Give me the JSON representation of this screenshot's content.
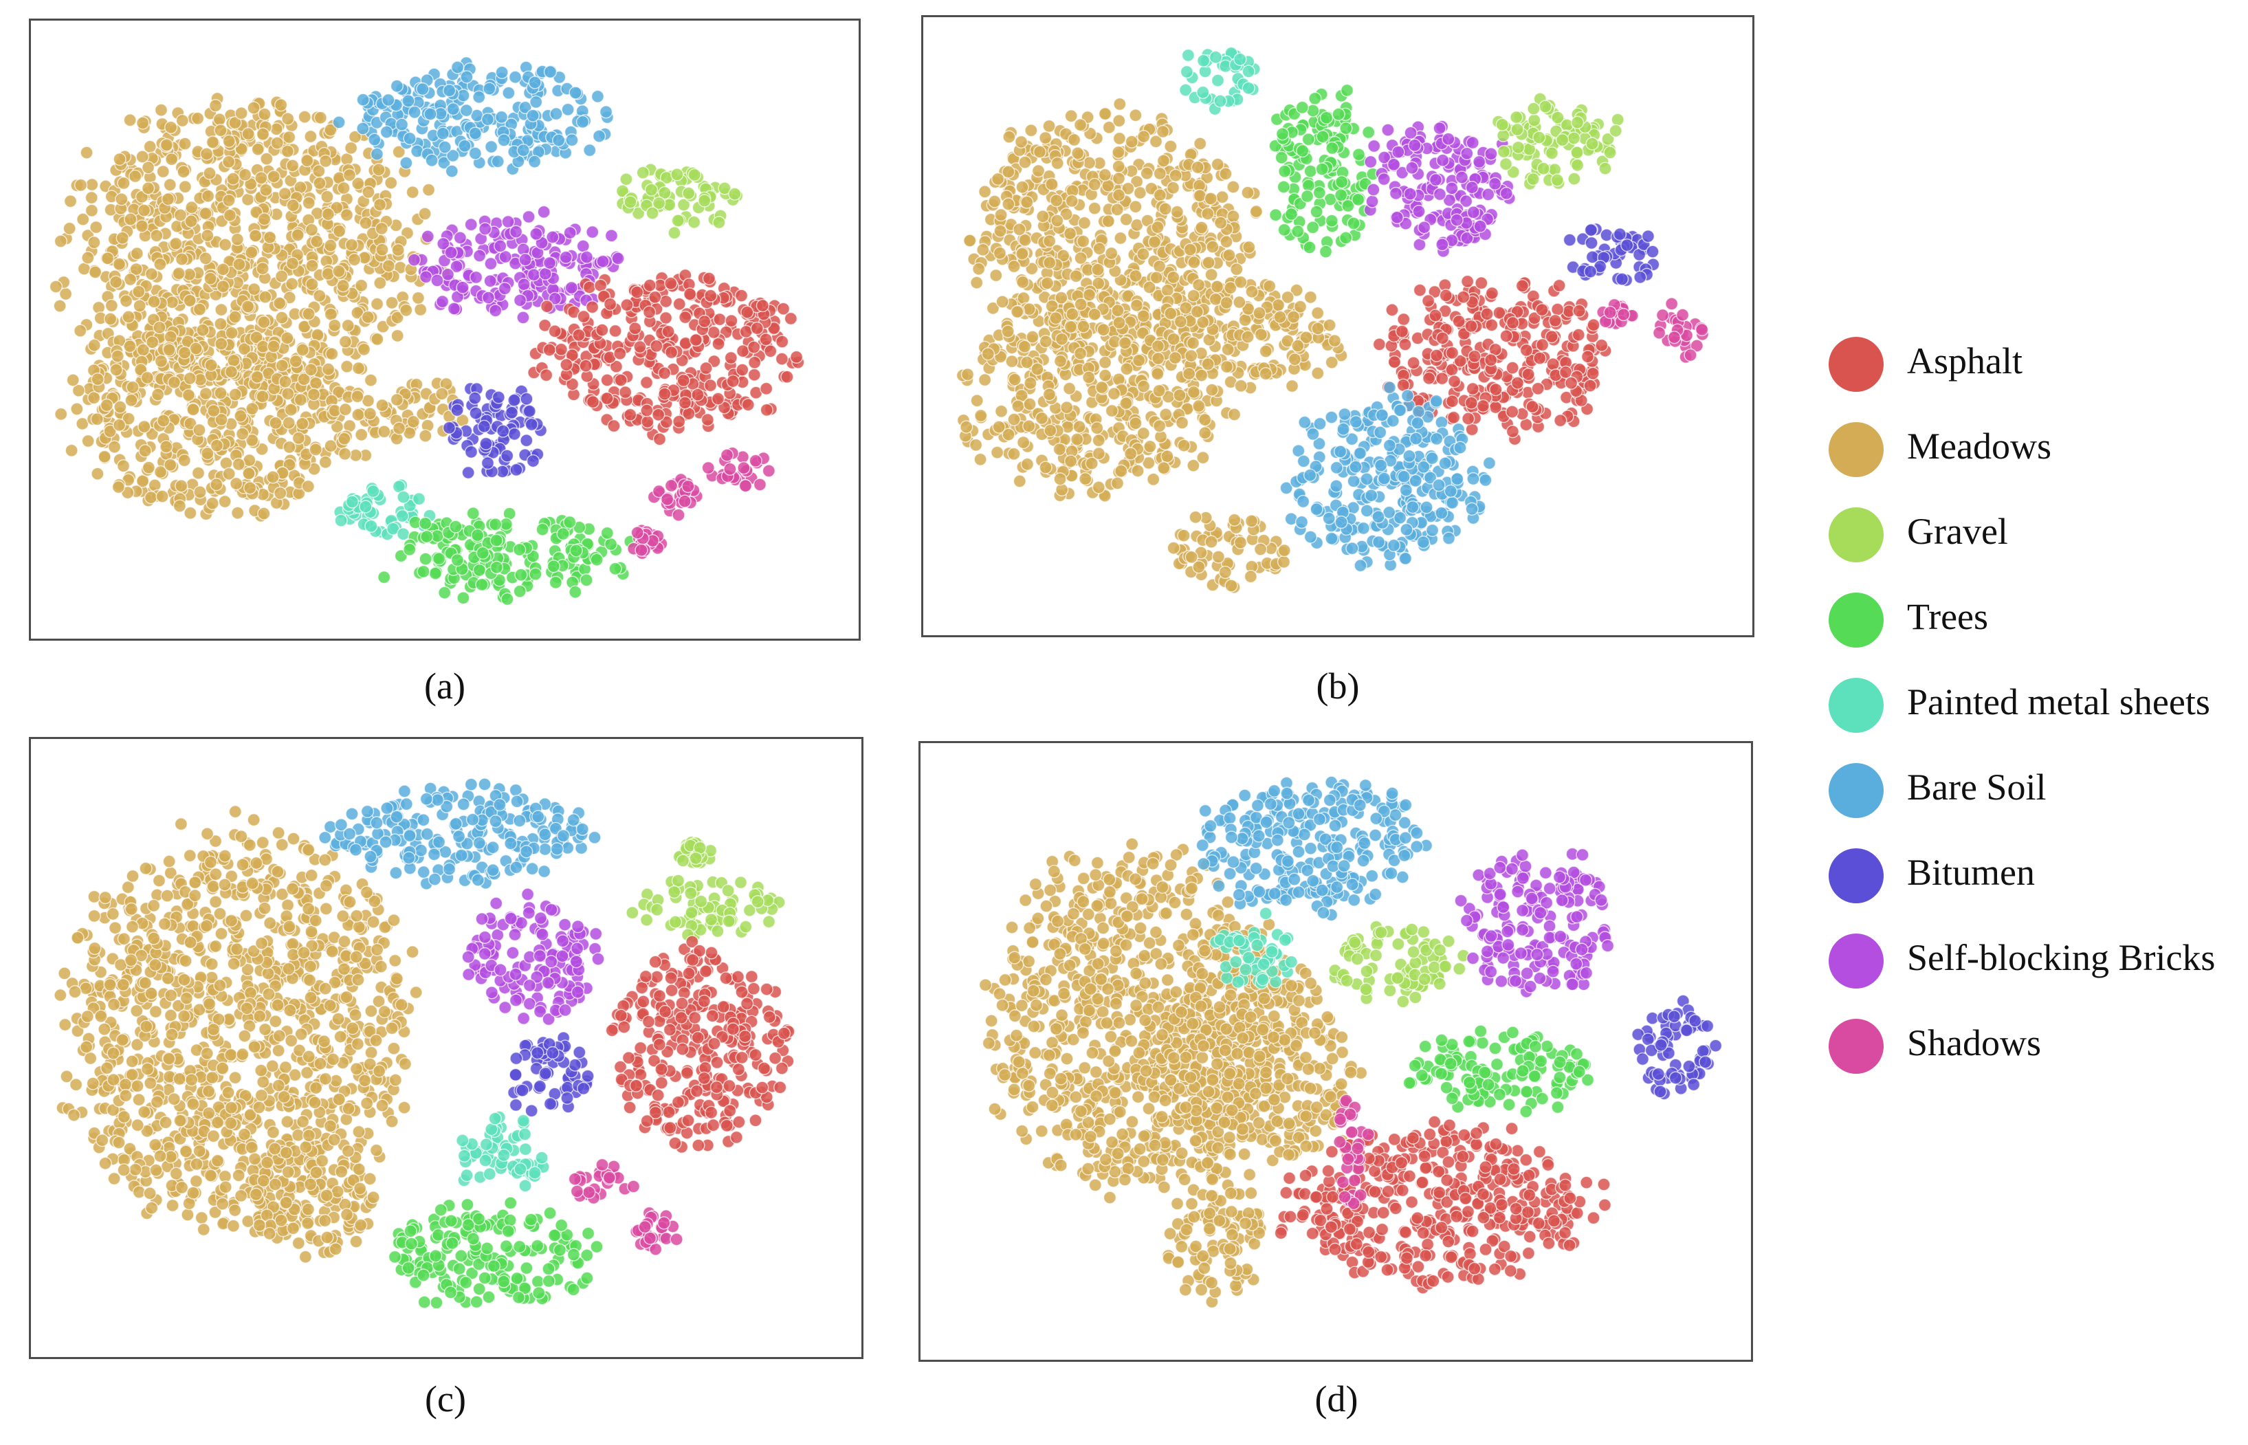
{
  "legend": {
    "items": [
      {
        "label": "Asphalt",
        "color": "#d9534f"
      },
      {
        "label": "Meadows",
        "color": "#d4ac55"
      },
      {
        "label": "Gravel",
        "color": "#a6dc5a"
      },
      {
        "label": "Trees",
        "color": "#55db55"
      },
      {
        "label": "Painted metal sheets",
        "color": "#5de0bc"
      },
      {
        "label": "Bare Soil",
        "color": "#5aaede"
      },
      {
        "label": "Bitumen",
        "color": "#5a4fd6"
      },
      {
        "label": "Self-blocking Bricks",
        "color": "#b34ee0"
      },
      {
        "label": "Shadows",
        "color": "#d94aa1"
      }
    ]
  },
  "chart_data": [
    {
      "type": "scatter",
      "caption": "(a)",
      "xlim": [
        0,
        100
      ],
      "ylim": [
        0,
        100
      ],
      "clusters": [
        {
          "class": "Meadows",
          "cx": 25,
          "cy": 62,
          "rx": 22,
          "ry": 26
        },
        {
          "class": "Meadows",
          "cx": 22,
          "cy": 35,
          "rx": 18,
          "ry": 16
        },
        {
          "class": "Meadows",
          "cx": 47,
          "cy": 36,
          "rx": 6,
          "ry": 5
        },
        {
          "class": "Bare Soil",
          "cx": 54,
          "cy": 86,
          "rx": 16,
          "ry": 9
        },
        {
          "class": "Gravel",
          "cx": 79,
          "cy": 72,
          "rx": 7,
          "ry": 6
        },
        {
          "class": "Self-blocking Bricks",
          "cx": 59,
          "cy": 61,
          "rx": 12,
          "ry": 9
        },
        {
          "class": "Asphalt",
          "cx": 78,
          "cy": 46,
          "rx": 16,
          "ry": 13
        },
        {
          "class": "Bitumen",
          "cx": 56,
          "cy": 33,
          "rx": 6,
          "ry": 8
        },
        {
          "class": "Painted metal sheets",
          "cx": 43,
          "cy": 19,
          "rx": 6,
          "ry": 5
        },
        {
          "class": "Trees",
          "cx": 57,
          "cy": 12,
          "rx": 15,
          "ry": 7
        },
        {
          "class": "Shadows",
          "cx": 87,
          "cy": 26,
          "rx": 4,
          "ry": 3
        },
        {
          "class": "Shadows",
          "cx": 79,
          "cy": 22,
          "rx": 3,
          "ry": 3
        },
        {
          "class": "Shadows",
          "cx": 75,
          "cy": 14,
          "rx": 2,
          "ry": 2
        }
      ]
    },
    {
      "type": "scatter",
      "caption": "(b)",
      "xlim": [
        0,
        100
      ],
      "ylim": [
        0,
        100
      ],
      "clusters": [
        {
          "class": "Meadows",
          "cx": 22,
          "cy": 66,
          "rx": 17,
          "ry": 20
        },
        {
          "class": "Meadows",
          "cx": 20,
          "cy": 38,
          "rx": 16,
          "ry": 16
        },
        {
          "class": "Meadows",
          "cx": 38,
          "cy": 48,
          "rx": 12,
          "ry": 9
        },
        {
          "class": "Meadows",
          "cx": 36,
          "cy": 12,
          "rx": 7,
          "ry": 6
        },
        {
          "class": "Painted metal sheets",
          "cx": 35,
          "cy": 92,
          "rx": 5,
          "ry": 5
        },
        {
          "class": "Trees",
          "cx": 48,
          "cy": 76,
          "rx": 6,
          "ry": 14
        },
        {
          "class": "Self-blocking Bricks",
          "cx": 63,
          "cy": 74,
          "rx": 9,
          "ry": 11
        },
        {
          "class": "Gravel",
          "cx": 77,
          "cy": 81,
          "rx": 8,
          "ry": 7
        },
        {
          "class": "Bitumen",
          "cx": 84,
          "cy": 62,
          "rx": 6,
          "ry": 5
        },
        {
          "class": "Asphalt",
          "cx": 70,
          "cy": 45,
          "rx": 14,
          "ry": 13
        },
        {
          "class": "Bare Soil",
          "cx": 56,
          "cy": 24,
          "rx": 12,
          "ry": 14
        },
        {
          "class": "Shadows",
          "cx": 93,
          "cy": 49,
          "rx": 3,
          "ry": 5
        },
        {
          "class": "Shadows",
          "cx": 85,
          "cy": 52,
          "rx": 2,
          "ry": 2
        }
      ]
    },
    {
      "type": "scatter",
      "caption": "(c)",
      "xlim": [
        0,
        100
      ],
      "ylim": [
        0,
        100
      ],
      "clusters": [
        {
          "class": "Meadows",
          "cx": 24,
          "cy": 53,
          "rx": 21,
          "ry": 33
        },
        {
          "class": "Meadows",
          "cx": 33,
          "cy": 25,
          "rx": 8,
          "ry": 10
        },
        {
          "class": "Bare Soil",
          "cx": 52,
          "cy": 86,
          "rx": 16,
          "ry": 8
        },
        {
          "class": "Gravel",
          "cx": 83,
          "cy": 74,
          "rx": 9,
          "ry": 5
        },
        {
          "class": "Gravel",
          "cx": 81,
          "cy": 83,
          "rx": 2,
          "ry": 2
        },
        {
          "class": "Self-blocking Bricks",
          "cx": 61,
          "cy": 65,
          "rx": 8,
          "ry": 10
        },
        {
          "class": "Asphalt",
          "cx": 82,
          "cy": 50,
          "rx": 11,
          "ry": 16
        },
        {
          "class": "Bitumen",
          "cx": 63,
          "cy": 45,
          "rx": 5,
          "ry": 7
        },
        {
          "class": "Painted metal sheets",
          "cx": 57,
          "cy": 32,
          "rx": 6,
          "ry": 6
        },
        {
          "class": "Trees",
          "cx": 55,
          "cy": 15,
          "rx": 14,
          "ry": 8
        },
        {
          "class": "Shadows",
          "cx": 69,
          "cy": 27,
          "rx": 4,
          "ry": 3
        },
        {
          "class": "Shadows",
          "cx": 76,
          "cy": 19,
          "rx": 3,
          "ry": 3
        }
      ]
    },
    {
      "type": "scatter",
      "caption": "(d)",
      "xlim": [
        0,
        100
      ],
      "ylim": [
        0,
        100
      ],
      "clusters": [
        {
          "class": "Meadows",
          "cx": 25,
          "cy": 55,
          "rx": 18,
          "ry": 28
        },
        {
          "class": "Meadows",
          "cx": 40,
          "cy": 47,
          "rx": 12,
          "ry": 18
        },
        {
          "class": "Meadows",
          "cx": 35,
          "cy": 18,
          "rx": 6,
          "ry": 10
        },
        {
          "class": "Bare Soil",
          "cx": 47,
          "cy": 85,
          "rx": 14,
          "ry": 11
        },
        {
          "class": "Painted metal sheets",
          "cx": 40,
          "cy": 67,
          "rx": 5,
          "ry": 6
        },
        {
          "class": "Gravel",
          "cx": 57,
          "cy": 65,
          "rx": 8,
          "ry": 6
        },
        {
          "class": "Self-blocking Bricks",
          "cx": 75,
          "cy": 72,
          "rx": 9,
          "ry": 12
        },
        {
          "class": "Trees",
          "cx": 71,
          "cy": 47,
          "rx": 11,
          "ry": 7
        },
        {
          "class": "Bitumen",
          "cx": 92,
          "cy": 50,
          "rx": 5,
          "ry": 8
        },
        {
          "class": "Asphalt",
          "cx": 63,
          "cy": 24,
          "rx": 19,
          "ry": 13
        },
        {
          "class": "Shadows",
          "cx": 52,
          "cy": 33,
          "rx": 2,
          "ry": 10
        }
      ]
    }
  ]
}
